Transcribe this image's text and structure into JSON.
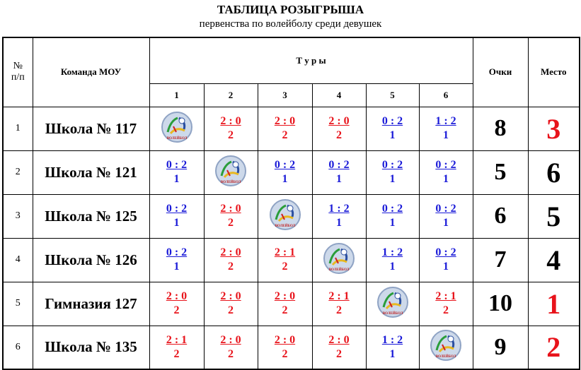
{
  "header": {
    "title": "ТАБЛИЦА РОЗЫГРЫША",
    "subtitle": "первенства по волейболу среди девушек"
  },
  "logo_text": "ВОЛЕЙБОЛ",
  "table": {
    "columns": {
      "number": [
        "№",
        "п/п"
      ],
      "team": "Команда  МОУ",
      "rounds": "Т у р ы",
      "points": "Очки",
      "place": "Место"
    },
    "round_numbers": [
      "1",
      "2",
      "3",
      "4",
      "5",
      "6"
    ],
    "rows": [
      {
        "number": "1",
        "team": "Школа № 117",
        "results": [
          null,
          {
            "score": "2 : 0",
            "points": "2"
          },
          {
            "score": "2 : 0",
            "points": "2"
          },
          {
            "score": "2 : 0",
            "points": "2"
          },
          {
            "score": "0 : 2",
            "points": "1"
          },
          {
            "score": "1 : 2",
            "points": "1"
          }
        ],
        "points": "8",
        "place": "3",
        "place_color": "#e8131b"
      },
      {
        "number": "2",
        "team": "Школа № 121",
        "results": [
          {
            "score": "0 : 2",
            "points": "1"
          },
          null,
          {
            "score": "0 : 2",
            "points": "1"
          },
          {
            "score": "0 : 2",
            "points": "1"
          },
          {
            "score": "0 : 2",
            "points": "1"
          },
          {
            "score": "0 : 2",
            "points": "1"
          }
        ],
        "points": "5",
        "place": "6",
        "place_color": "#000000"
      },
      {
        "number": "3",
        "team": "Школа № 125",
        "results": [
          {
            "score": "0 : 2",
            "points": "1"
          },
          {
            "score": "2 : 0",
            "points": "2"
          },
          null,
          {
            "score": "1 : 2",
            "points": "1"
          },
          {
            "score": "0 : 2",
            "points": "1"
          },
          {
            "score": "0 : 2",
            "points": "1"
          }
        ],
        "points": "6",
        "place": "5",
        "place_color": "#000000"
      },
      {
        "number": "4",
        "team": "Школа № 126",
        "results": [
          {
            "score": "0 : 2",
            "points": "1"
          },
          {
            "score": "2 : 0",
            "points": "2"
          },
          {
            "score": "2 : 1",
            "points": "2"
          },
          null,
          {
            "score": "1 : 2",
            "points": "1"
          },
          {
            "score": "0 : 2",
            "points": "1"
          }
        ],
        "points": "7",
        "place": "4",
        "place_color": "#000000"
      },
      {
        "number": "5",
        "team": "Гимназия 127",
        "results": [
          {
            "score": "2 : 0",
            "points": "2"
          },
          {
            "score": "2 : 0",
            "points": "2"
          },
          {
            "score": "2 : 0",
            "points": "2"
          },
          {
            "score": "2 : 1",
            "points": "2"
          },
          null,
          {
            "score": "2 : 1",
            "points": "2"
          }
        ],
        "points": "10",
        "place": "1",
        "place_color": "#e8131b"
      },
      {
        "number": "6",
        "team": "Школа № 135",
        "results": [
          {
            "score": "2 : 1",
            "points": "2"
          },
          {
            "score": "2 : 0",
            "points": "2"
          },
          {
            "score": "2 : 0",
            "points": "2"
          },
          {
            "score": "2 : 0",
            "points": "2"
          },
          {
            "score": "1 : 2",
            "points": "1"
          },
          null
        ],
        "points": "9",
        "place": "2",
        "place_color": "#e8131b"
      }
    ]
  }
}
